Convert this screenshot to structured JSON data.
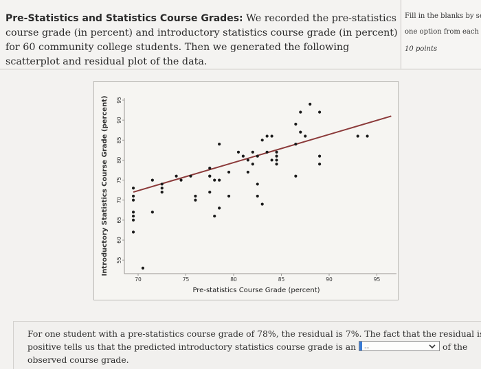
{
  "question": {
    "title": "Pre-Statistics and Statistics Course Grades:",
    "body": "We recorded the pre-statistics course grade (in percent) and introductory statistics course grade (in percent) for 60 community college students. Then we generated the following scatterplot and residual plot of the data."
  },
  "side_panel": {
    "instructions_line1": "Fill in the blanks by sele",
    "instructions_line2": "one option from each me",
    "points": "10 points"
  },
  "chart_data": {
    "type": "scatter",
    "xlabel": "Pre-statistics Course Grade (percent)",
    "ylabel": "Introductory Statistics Course Grade (percent)",
    "xlim": [
      68,
      97
    ],
    "ylim": [
      55,
      96
    ],
    "x_ticks": [
      "70",
      "75",
      "80",
      "85",
      "90",
      "95"
    ],
    "y_ticks": [
      "55",
      "60",
      "65",
      "70",
      "75",
      "80",
      "85",
      "90",
      "95"
    ],
    "grid": false,
    "points": [
      {
        "x": 69.5,
        "y": 73
      },
      {
        "x": 69.5,
        "y": 71
      },
      {
        "x": 69.5,
        "y": 70
      },
      {
        "x": 69.5,
        "y": 67
      },
      {
        "x": 69.5,
        "y": 66
      },
      {
        "x": 69.5,
        "y": 65
      },
      {
        "x": 69.5,
        "y": 62
      },
      {
        "x": 70.5,
        "y": 53
      },
      {
        "x": 71.5,
        "y": 75
      },
      {
        "x": 71.5,
        "y": 67
      },
      {
        "x": 72.5,
        "y": 74
      },
      {
        "x": 72.5,
        "y": 73
      },
      {
        "x": 72.5,
        "y": 72
      },
      {
        "x": 74.0,
        "y": 76
      },
      {
        "x": 74.5,
        "y": 75
      },
      {
        "x": 75.5,
        "y": 76
      },
      {
        "x": 76.0,
        "y": 71
      },
      {
        "x": 76.0,
        "y": 70
      },
      {
        "x": 77.5,
        "y": 78
      },
      {
        "x": 77.5,
        "y": 76
      },
      {
        "x": 77.5,
        "y": 76
      },
      {
        "x": 77.5,
        "y": 72
      },
      {
        "x": 78.0,
        "y": 75
      },
      {
        "x": 78.5,
        "y": 75
      },
      {
        "x": 78.0,
        "y": 66
      },
      {
        "x": 78.5,
        "y": 84
      },
      {
        "x": 78.5,
        "y": 68
      },
      {
        "x": 79.5,
        "y": 77
      },
      {
        "x": 79.5,
        "y": 71
      },
      {
        "x": 80.5,
        "y": 82
      },
      {
        "x": 81.0,
        "y": 81
      },
      {
        "x": 81.5,
        "y": 80
      },
      {
        "x": 81.5,
        "y": 77
      },
      {
        "x": 82.0,
        "y": 82
      },
      {
        "x": 82.0,
        "y": 79
      },
      {
        "x": 82.5,
        "y": 81
      },
      {
        "x": 82.5,
        "y": 74
      },
      {
        "x": 82.5,
        "y": 71
      },
      {
        "x": 83.0,
        "y": 85
      },
      {
        "x": 83.0,
        "y": 69
      },
      {
        "x": 83.5,
        "y": 86
      },
      {
        "x": 83.5,
        "y": 82
      },
      {
        "x": 84.0,
        "y": 86
      },
      {
        "x": 84.0,
        "y": 80
      },
      {
        "x": 84.5,
        "y": 82
      },
      {
        "x": 84.5,
        "y": 81
      },
      {
        "x": 84.5,
        "y": 80
      },
      {
        "x": 84.5,
        "y": 79
      },
      {
        "x": 86.5,
        "y": 89
      },
      {
        "x": 86.5,
        "y": 84
      },
      {
        "x": 86.5,
        "y": 76
      },
      {
        "x": 87.0,
        "y": 92
      },
      {
        "x": 87.0,
        "y": 87
      },
      {
        "x": 87.5,
        "y": 86
      },
      {
        "x": 88.0,
        "y": 94
      },
      {
        "x": 89.0,
        "y": 92
      },
      {
        "x": 89.0,
        "y": 81
      },
      {
        "x": 89.0,
        "y": 79
      },
      {
        "x": 93.0,
        "y": 86
      },
      {
        "x": 94.0,
        "y": 86
      }
    ],
    "regression_line": {
      "x": [
        69.5,
        96.5
      ],
      "y": [
        72,
        91
      ]
    },
    "colors": {
      "points": "#1a1a1a",
      "line": "#8b3a3a"
    }
  },
  "answer": {
    "text_before": "For one student with a pre-statistics course grade of 78%, the residual is 7%. The fact that the residual is positive tells us that the predicted introductory statistics course grade is an",
    "dropdown_value": "--",
    "text_after": "of the observed course grade."
  }
}
